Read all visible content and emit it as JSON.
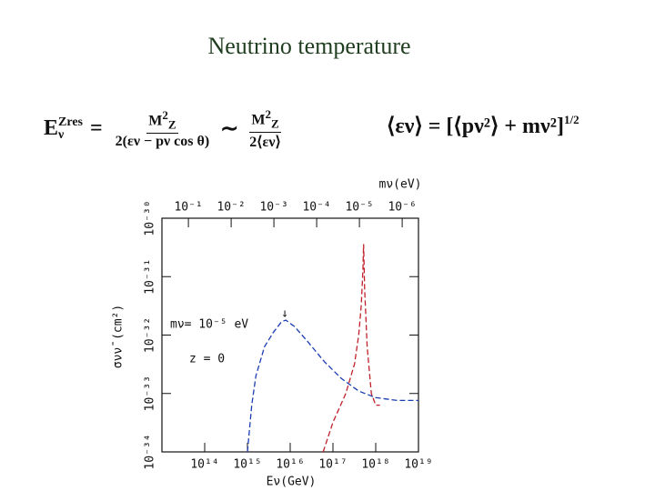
{
  "title": "Neutrino temperature",
  "formula_1": {
    "lhs": "E",
    "lhs_sub": "ν",
    "lhs_sup": "Zres",
    "eq": "=",
    "num": "M",
    "num_sup": "2",
    "num_sub": "Z",
    "den_1": "2(εν − pν cos θ)",
    "sim": "∼",
    "den_2": "2⟨εν⟩"
  },
  "formula_2": {
    "text": "⟨εν⟩ = [⟨pν²⟩ + mν²]",
    "sup": "1/2"
  },
  "chart_data": {
    "type": "line",
    "x_label": "Eν(GeV)",
    "y_label": "σνν̄ (cm²)",
    "x2_label": "mν(eV)",
    "annotations": [
      "mν= 10⁻⁵ eV",
      "z = 0",
      "↓"
    ],
    "xlim": [
      10000000000000.0,
      1e+19
    ],
    "xticks": [
      {
        "value": 100000000000000.0,
        "label": "10¹⁴"
      },
      {
        "value": 1000000000000000.0,
        "label": "10¹⁵"
      },
      {
        "value": 1e+16,
        "label": "10¹⁶"
      },
      {
        "value": 1e+17,
        "label": "10¹⁷"
      },
      {
        "value": 1e+18,
        "label": "10¹⁸"
      },
      {
        "value": 1e+19,
        "label": "10¹⁹"
      }
    ],
    "ylim": [
      1e-34,
      1e-30
    ],
    "yticks": [
      {
        "value": 1e-34,
        "label": "10⁻³⁴"
      },
      {
        "value": 1e-33,
        "label": "10⁻³³"
      },
      {
        "value": 1e-32,
        "label": "10⁻³²"
      },
      {
        "value": 1e-31,
        "label": "10⁻³¹"
      },
      {
        "value": 1e-30,
        "label": "10⁻³⁰"
      }
    ],
    "x2lim": [
      0.416,
      4.16e-07
    ],
    "x2ticks": [
      {
        "value": 0.1,
        "label": "10⁻¹"
      },
      {
        "value": 0.01,
        "label": "10⁻²"
      },
      {
        "value": 0.001,
        "label": "10⁻³"
      },
      {
        "value": 0.0001,
        "label": "10⁻⁴"
      },
      {
        "value": 1e-05,
        "label": "10⁻⁵"
      },
      {
        "value": 1e-06,
        "label": "10⁻⁶"
      }
    ],
    "log_x": true,
    "log_y": true,
    "series": [
      {
        "color": "#1a3db0",
        "x": [
          1000000000000000.0,
          1260000000000000.0,
          1580000000000000.0,
          2500000000000000.0,
          4000000000000000.0,
          6300000000000000.0,
          7900000000000000.0,
          1.26e+16,
          2.5e+16,
          6.3e+16,
          1.58e+17,
          4e+17,
          1e+18,
          3.2e+18,
          1e+19
        ],
        "values": [
          1e-34,
          6.3e-34,
          2e-33,
          6.3e-33,
          1.1e-32,
          1.7e-32,
          1.8e-32,
          1.4e-32,
          7.9e-33,
          3.5e-33,
          1.8e-33,
          1.1e-33,
          8.5e-34,
          7.6e-34,
          7.6e-34
        ]
      },
      {
        "color": "#c0202a",
        "x": [
          5.9e+16,
          1e+17,
          2e+17,
          3.2e+17,
          4e+17,
          4.6e+17,
          5e+17,
          5.2e+17,
          5.5e+17,
          6.3e+17,
          7.9e+17,
          1e+18,
          1.26e+18
        ],
        "values": [
          1e-34,
          3.2e-34,
          1e-33,
          3.2e-33,
          1e-32,
          3.2e-32,
          1.26e-31,
          3.6e-31,
          6.3e-32,
          6.3e-33,
          1e-33,
          6.3e-34,
          6.3e-34
        ]
      }
    ]
  }
}
